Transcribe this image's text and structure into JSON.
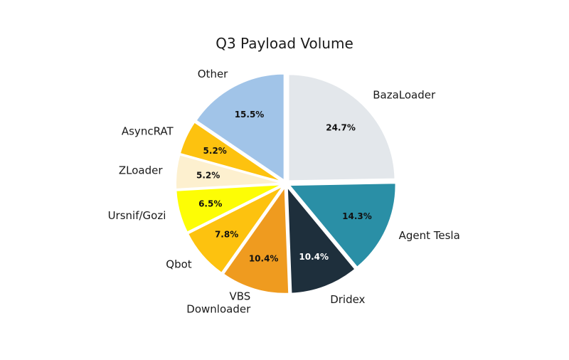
{
  "chart_data": {
    "type": "pie",
    "title": "Q3 Payload Volume",
    "slices": [
      {
        "label": "BazaLoader",
        "value": 24.7,
        "value_label": "24.7%",
        "color": "#e3e7eb",
        "pct_color": "#111111"
      },
      {
        "label": "Agent Tesla",
        "value": 14.3,
        "value_label": "14.3%",
        "color": "#2a8fa6",
        "pct_color": "#111111"
      },
      {
        "label": "Dridex",
        "value": 10.4,
        "value_label": "10.4%",
        "color": "#1e2f3c",
        "pct_color": "#ffffff"
      },
      {
        "label": "VBS Downloader",
        "value": 10.4,
        "value_label": "10.4%",
        "color": "#ef9b1f",
        "pct_color": "#111111"
      },
      {
        "label": "Qbot",
        "value": 7.8,
        "value_label": "7.8%",
        "color": "#fdc20f",
        "pct_color": "#111111"
      },
      {
        "label": "Ursnif/Gozi",
        "value": 6.5,
        "value_label": "6.5%",
        "color": "#fdfd05",
        "pct_color": "#111111"
      },
      {
        "label": "ZLoader",
        "value": 5.2,
        "value_label": "5.2%",
        "color": "#fdf0cf",
        "pct_color": "#111111"
      },
      {
        "label": "AsyncRAT",
        "value": 5.2,
        "value_label": "5.2%",
        "color": "#fdc20f",
        "pct_color": "#111111"
      },
      {
        "label": "Other",
        "value": 15.5,
        "value_label": "15.5%",
        "color": "#a1c4e8",
        "pct_color": "#111111"
      }
    ]
  }
}
